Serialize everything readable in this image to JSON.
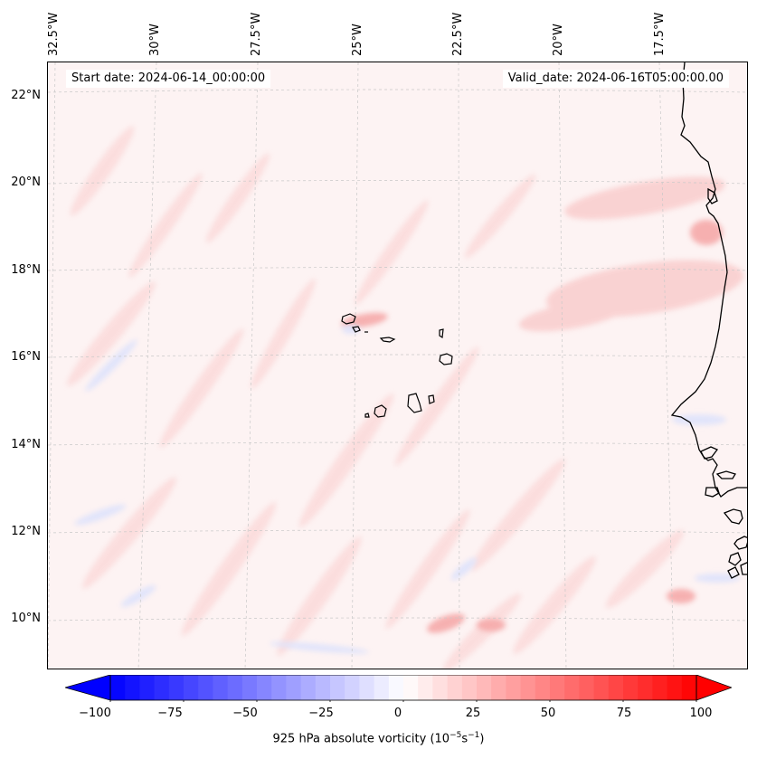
{
  "header": {
    "start_date": "Start date: 2024-06-14_00:00:00",
    "valid_date": "Valid_date: 2024-06-16T05:00:00.00"
  },
  "map": {
    "longitude_labels": [
      "32.5°W",
      "30°W",
      "27.5°W",
      "25°W",
      "22.5°W",
      "20°W",
      "17.5°W"
    ],
    "latitude_labels": [
      "22°N",
      "20°N",
      "18°N",
      "16°N",
      "14°N",
      "12°N",
      "10°N"
    ],
    "field": "925 hPa absolute vorticity",
    "gridlines": true,
    "coastline_color": "#000000"
  },
  "colorbar": {
    "ticks": [
      "−100",
      "−75",
      "−50",
      "−25",
      "0",
      "25",
      "50",
      "75",
      "100"
    ],
    "title_prefix": "925 hPa absolute vorticity (10",
    "title_exp1": "−5",
    "title_mid": "s",
    "title_exp2": "−1",
    "title_suffix": ")",
    "min": -100,
    "max": 100,
    "low_color": "#0000ff",
    "mid_color": "#ffffff",
    "high_color": "#ff0000",
    "extend": "both"
  }
}
